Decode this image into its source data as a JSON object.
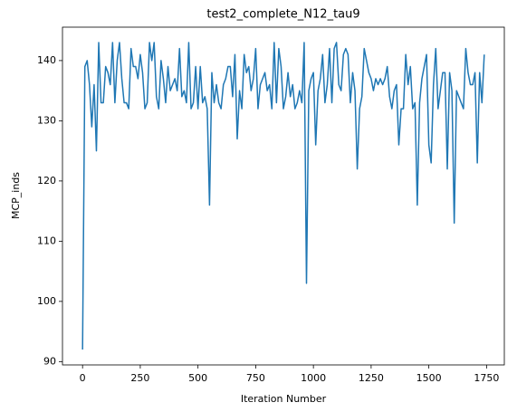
{
  "chart_data": {
    "type": "line",
    "title": "test2_complete_N12_tau9",
    "xlabel": "Iteration Number",
    "ylabel": "MCP_inds",
    "color": "#1f77b4",
    "x": [
      0,
      10,
      20,
      30,
      40,
      50,
      60,
      70,
      80,
      90,
      100,
      110,
      120,
      130,
      140,
      150,
      160,
      170,
      180,
      190,
      200,
      210,
      220,
      230,
      240,
      250,
      260,
      270,
      280,
      290,
      300,
      310,
      320,
      330,
      340,
      350,
      360,
      370,
      380,
      390,
      400,
      410,
      420,
      430,
      440,
      450,
      460,
      470,
      480,
      490,
      500,
      510,
      520,
      530,
      540,
      550,
      560,
      570,
      580,
      590,
      600,
      610,
      620,
      630,
      640,
      650,
      660,
      670,
      680,
      690,
      700,
      710,
      720,
      730,
      740,
      750,
      760,
      770,
      780,
      790,
      800,
      810,
      820,
      830,
      840,
      850,
      860,
      870,
      880,
      890,
      900,
      910,
      920,
      930,
      940,
      950,
      960,
      970,
      980,
      990,
      1000,
      1010,
      1020,
      1030,
      1040,
      1050,
      1060,
      1070,
      1080,
      1090,
      1100,
      1110,
      1120,
      1130,
      1140,
      1150,
      1160,
      1170,
      1180,
      1190,
      1200,
      1210,
      1220,
      1230,
      1240,
      1250,
      1260,
      1270,
      1280,
      1290,
      1300,
      1310,
      1320,
      1330,
      1340,
      1350,
      1360,
      1370,
      1380,
      1390,
      1400,
      1410,
      1420,
      1430,
      1440,
      1450,
      1460,
      1470,
      1480,
      1490,
      1500,
      1510,
      1520,
      1530,
      1540,
      1550,
      1560,
      1570,
      1580,
      1590,
      1600,
      1610,
      1620,
      1630,
      1640,
      1650,
      1660,
      1670,
      1680,
      1690,
      1700,
      1710,
      1720,
      1730,
      1740
    ],
    "values": [
      92,
      139,
      140,
      136,
      129,
      136,
      125,
      143,
      133,
      133,
      139,
      138,
      136,
      143,
      133,
      140,
      143,
      137,
      133,
      133,
      132,
      142,
      139,
      139,
      137,
      141,
      138,
      132,
      133,
      143,
      140,
      143,
      134,
      132,
      140,
      137,
      133,
      139,
      135,
      136,
      137,
      135,
      142,
      134,
      135,
      133,
      143,
      132,
      133,
      139,
      132,
      139,
      133,
      134,
      132,
      116,
      138,
      133,
      136,
      133,
      132,
      136,
      137,
      139,
      139,
      134,
      141,
      127,
      135,
      132,
      141,
      138,
      139,
      135,
      137,
      142,
      132,
      136,
      137,
      138,
      135,
      136,
      132,
      143,
      133,
      142,
      139,
      132,
      134,
      138,
      134,
      136,
      132,
      133,
      135,
      133,
      143,
      103,
      135,
      137,
      138,
      126,
      135,
      137,
      141,
      133,
      136,
      142,
      133,
      142,
      143,
      136,
      135,
      141,
      142,
      141,
      133,
      138,
      135,
      122,
      132,
      134,
      142,
      140,
      138,
      137,
      135,
      137,
      136,
      137,
      136,
      137,
      139,
      134,
      132,
      135,
      136,
      126,
      132,
      132,
      141,
      136,
      139,
      132,
      133,
      116,
      133,
      137,
      139,
      141,
      126,
      123,
      136,
      142,
      132,
      135,
      138,
      138,
      122,
      138,
      135,
      113,
      135,
      134,
      133,
      132,
      142,
      138,
      136,
      136,
      138,
      123,
      138,
      133,
      141
    ],
    "xlim": [
      -87,
      1827
    ],
    "xticks": [
      0,
      250,
      500,
      750,
      1000,
      1250,
      1500,
      1750
    ],
    "ylim": [
      89.45,
      145.55
    ],
    "yticks": [
      90,
      100,
      110,
      120,
      130,
      140
    ]
  }
}
